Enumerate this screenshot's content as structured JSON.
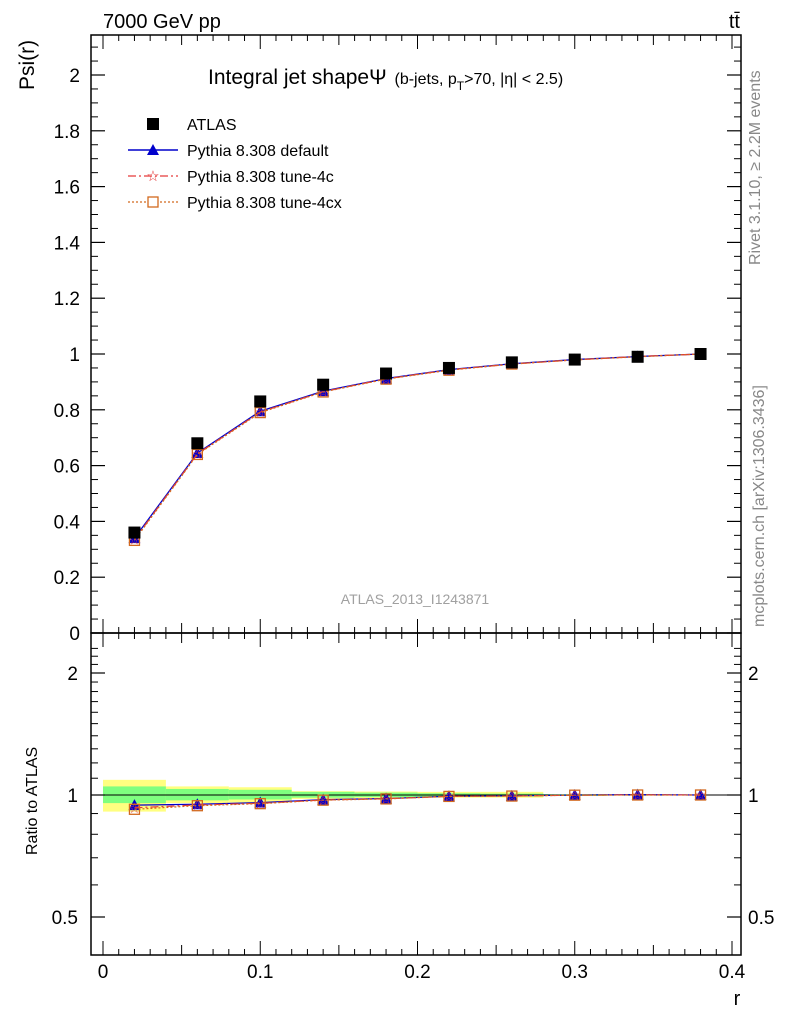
{
  "header": {
    "left": "7000 GeV pp",
    "right": "tt̄"
  },
  "side_labels": {
    "rivet": "Rivet 3.1.10, ≥ 2.2M events",
    "mcplots": "mcplots.cern.ch [arXiv:1306.3436]"
  },
  "watermark": "ATLAS_2013_I1243871",
  "title": {
    "main": "Integral jet shape",
    "psi": "Ψ",
    "cut_a": "(b-jets, p",
    "cut_sub": "T",
    "cut_b": ">70, |η| < 2.5)"
  },
  "top_ylabel": "Psi(r)",
  "bottom_ylabel": "Ratio to ATLAS",
  "xlabel": "r",
  "legend": {
    "atlas": "ATLAS",
    "default": "Pythia 8.308 default",
    "tune4c": "Pythia 8.308 tune-4c",
    "tune4cx": "Pythia 8.308 tune-4cx"
  },
  "colors": {
    "default": "#0000cc",
    "tune4c": "#e53a3a",
    "tune4cx": "#d2691e",
    "band_stat": "#7fff7f",
    "band_tot": "#ffff80"
  },
  "chart_data": {
    "type": "line",
    "x": [
      0.02,
      0.06,
      0.1,
      0.14,
      0.18,
      0.22,
      0.26,
      0.3,
      0.34,
      0.38
    ],
    "data": {
      "name": "ATLAS",
      "values": [
        0.36,
        0.68,
        0.83,
        0.89,
        0.93,
        0.95,
        0.97,
        0.98,
        0.99,
        1.0
      ]
    },
    "series": [
      {
        "name": "Pythia 8.308 default",
        "values": [
          0.34,
          0.645,
          0.795,
          0.867,
          0.912,
          0.944,
          0.965,
          0.98,
          0.991,
          1.0
        ]
      },
      {
        "name": "Pythia 8.308 tune-4c",
        "values": [
          0.335,
          0.642,
          0.792,
          0.865,
          0.911,
          0.943,
          0.964,
          0.979,
          0.991,
          1.0
        ]
      },
      {
        "name": "Pythia 8.308 tune-4cx",
        "values": [
          0.332,
          0.64,
          0.79,
          0.864,
          0.91,
          0.942,
          0.964,
          0.979,
          0.99,
          1.0
        ]
      }
    ],
    "ratio_series": [
      {
        "name": "Pythia 8.308 default",
        "values": [
          0.944,
          0.949,
          0.958,
          0.974,
          0.98,
          0.993,
          0.995,
          1.0,
          1.002,
          1.0
        ]
      },
      {
        "name": "Pythia 8.308 tune-4c",
        "values": [
          0.93,
          0.945,
          0.954,
          0.972,
          0.979,
          0.993,
          0.994,
          0.999,
          1.001,
          1.0
        ]
      },
      {
        "name": "Pythia 8.308 tune-4cx",
        "values": [
          0.922,
          0.941,
          0.952,
          0.971,
          0.978,
          0.992,
          0.994,
          0.999,
          1.0,
          1.0
        ]
      }
    ],
    "ratio_bands": {
      "stat": [
        [
          0.0,
          0.04,
          0.955,
          1.05
        ],
        [
          0.04,
          0.08,
          0.97,
          1.035
        ],
        [
          0.08,
          0.12,
          0.975,
          1.03
        ],
        [
          0.12,
          0.16,
          0.985,
          1.018
        ],
        [
          0.16,
          0.2,
          0.988,
          1.014
        ],
        [
          0.2,
          0.24,
          0.99,
          1.01
        ],
        [
          0.24,
          0.28,
          0.992,
          1.008
        ],
        [
          0.28,
          0.32,
          0.995,
          1.005
        ],
        [
          0.32,
          0.36,
          0.997,
          1.003
        ],
        [
          0.36,
          0.4,
          0.999,
          1.001
        ]
      ],
      "total": [
        [
          0.0,
          0.04,
          0.91,
          1.09
        ],
        [
          0.04,
          0.08,
          0.955,
          1.05
        ],
        [
          0.08,
          0.12,
          0.958,
          1.045
        ],
        [
          0.12,
          0.16,
          0.978,
          1.022
        ],
        [
          0.16,
          0.2,
          0.982,
          1.02
        ],
        [
          0.2,
          0.24,
          0.985,
          1.018
        ],
        [
          0.24,
          0.28,
          0.985,
          1.018
        ],
        [
          0.28,
          0.32,
          0.995,
          1.005
        ],
        [
          0.32,
          0.36,
          0.997,
          1.003
        ],
        [
          0.36,
          0.4,
          0.999,
          1.001
        ]
      ]
    },
    "top_yticks": [
      "0",
      "0.2",
      "0.4",
      "0.6",
      "0.8",
      "1",
      "1.2",
      "1.4",
      "1.6",
      "1.8",
      "2"
    ],
    "bottom_yticks": [
      "0.5",
      "1",
      "2"
    ],
    "xticks": [
      "0",
      "0.1",
      "0.2",
      "0.3",
      "0.4"
    ],
    "xlim": [
      -0.015,
      0.4
    ],
    "ylim": [
      0,
      2.14
    ],
    "ratio_ylim": [
      0.4,
      2.4
    ],
    "ratio_scale": "log"
  }
}
